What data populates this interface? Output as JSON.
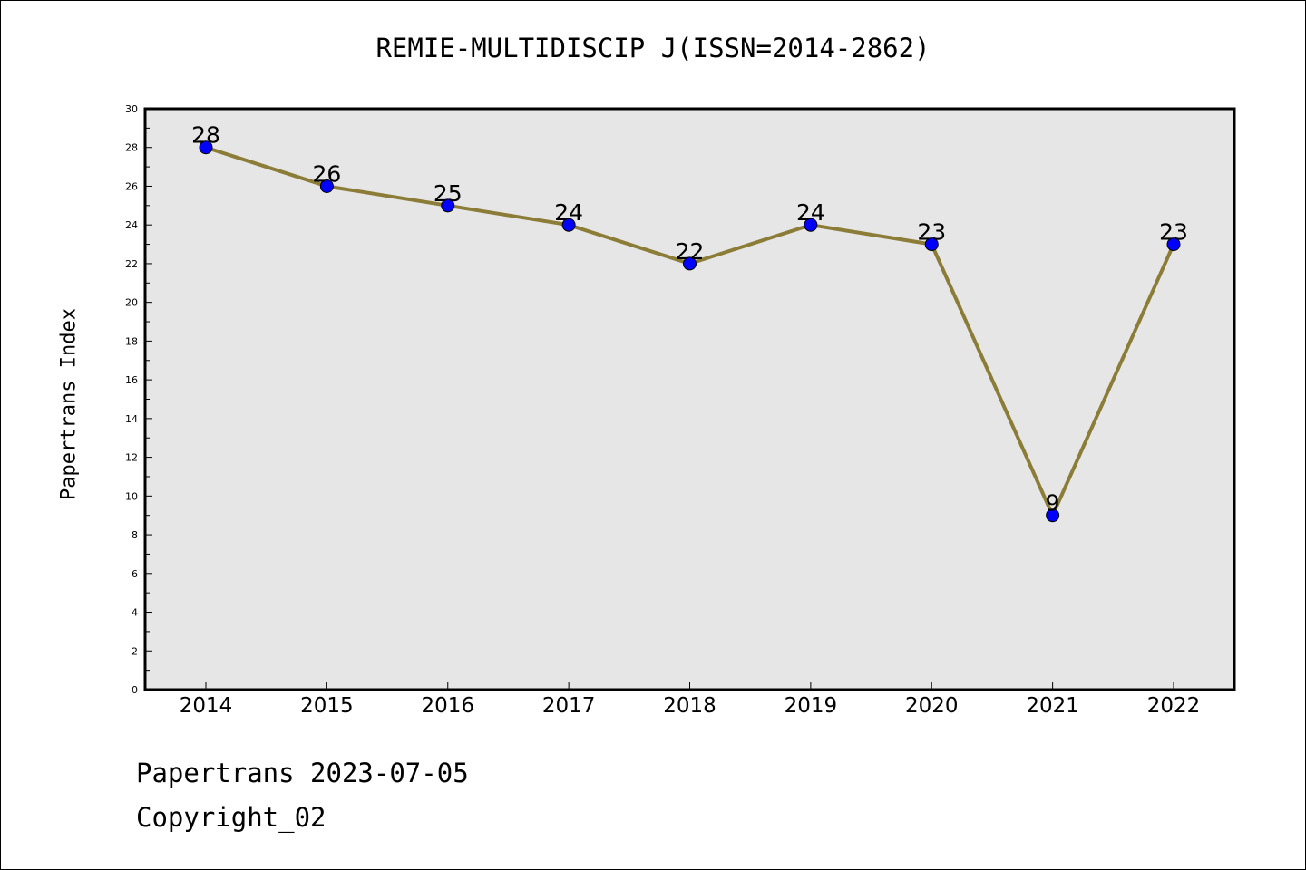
{
  "chart_data": {
    "type": "line",
    "title": "REMIE-MULTIDISCIP J(ISSN=2014-2862)",
    "xlabel": "",
    "ylabel": "Papertrans Index",
    "categories": [
      "2014",
      "2015",
      "2016",
      "2017",
      "2018",
      "2019",
      "2020",
      "2021",
      "2022"
    ],
    "series": [
      {
        "values": [
          28,
          26,
          25,
          24,
          22,
          24,
          23,
          9,
          23
        ]
      }
    ],
    "ylim": [
      0,
      30
    ],
    "yticks": [
      0,
      2,
      4,
      6,
      8,
      10,
      12,
      14,
      16,
      18,
      20,
      22,
      24,
      26,
      28,
      30
    ],
    "data_labels": true,
    "grid": false,
    "legend": "none",
    "colors": {
      "plot_background": "#e6e6e6",
      "line": "#8b7d37",
      "marker": "#0000ff",
      "marker_edge": "#000000"
    }
  },
  "footer": {
    "date_line": "Papertrans 2023-07-05",
    "copyright_line": "Copyright_02"
  }
}
